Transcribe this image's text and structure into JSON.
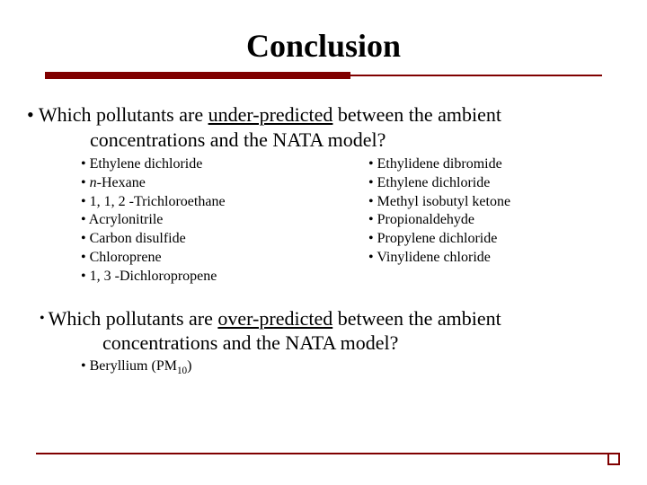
{
  "colors": {
    "accent": "#800000",
    "text": "#000000",
    "background": "#ffffff"
  },
  "typography": {
    "font_family": "Times New Roman",
    "title_size_pt": 36,
    "body_size_pt": 22,
    "list_size_pt": 16
  },
  "title": "Conclusion",
  "section1": {
    "question_before": "Which pollutants are ",
    "question_underlined": "under-predicted",
    "question_after": " between the ambient",
    "question_line2": "concentrations and the NATA model?",
    "left_items": [
      "Ethylene dichloride",
      "n-Hexane",
      "1, 1, 2 -Trichloroethane",
      "Acrylonitrile",
      "Carbon disulfide",
      "Chloroprene",
      "1, 3 -Dichloropropene"
    ],
    "left_italic_prefix_index": 1,
    "right_items": [
      "Ethylidene dibromide",
      "Ethylene dichloride",
      "Methyl isobutyl ketone",
      "Propionaldehyde",
      "Propylene dichloride",
      "Vinylidene chloride"
    ]
  },
  "section2": {
    "question_before": "Which pollutants are ",
    "question_underlined": "over-predicted",
    "question_after": " between the ambient",
    "question_line2": "concentrations and the NATA model?",
    "item_prefix": "Beryllium (PM",
    "item_sub": "10",
    "item_suffix": ")"
  }
}
